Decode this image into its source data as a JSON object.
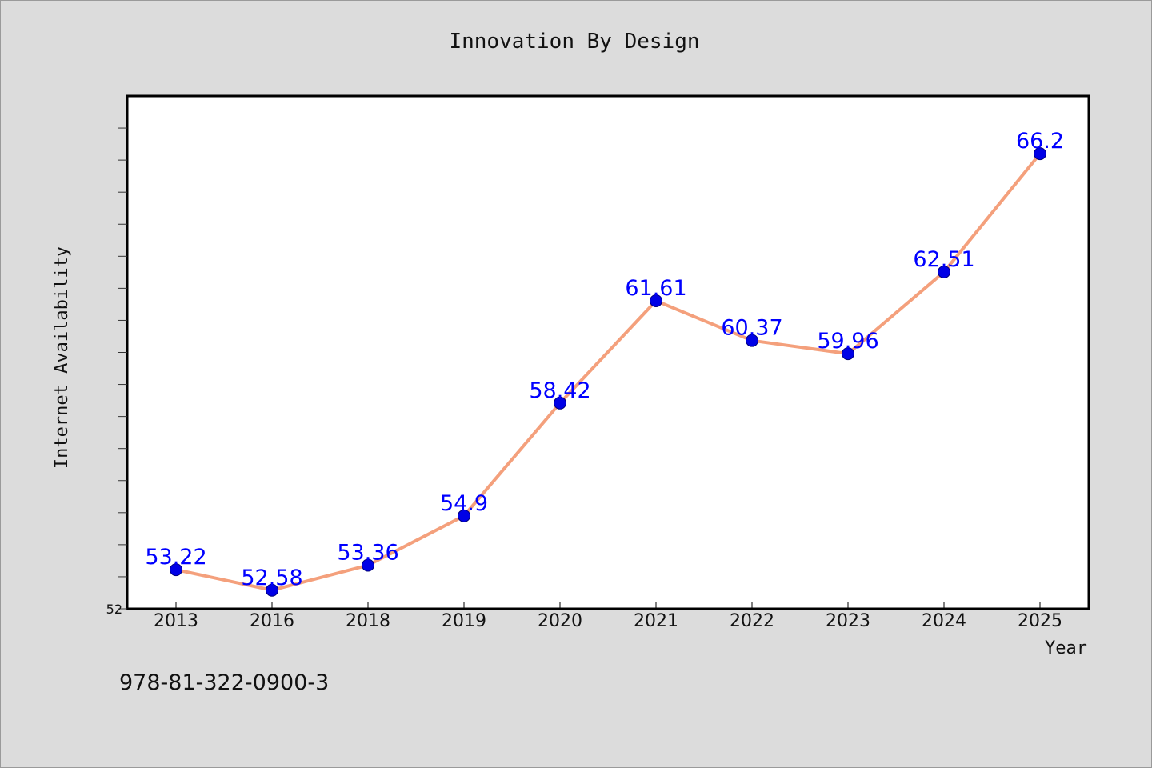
{
  "chart_data": {
    "type": "line",
    "title": "Innovation By Design",
    "xlabel": "Year",
    "ylabel": "Internet Availability",
    "categories": [
      "2013",
      "2016",
      "2018",
      "2019",
      "2020",
      "2021",
      "2022",
      "2023",
      "2024",
      "2025"
    ],
    "series": [
      {
        "values": [
          53.22,
          52.58,
          53.36,
          54.9,
          58.42,
          61.61,
          60.37,
          59.96,
          62.51,
          66.2
        ],
        "labels": [
          "53.22",
          "52.58",
          "53.36",
          "54.9",
          "58.42",
          "61.61",
          "60.37",
          "59.96",
          "62.51",
          "66.2"
        ]
      }
    ],
    "ylim": [
      52,
      68
    ],
    "y_tick_labels": [
      "52"
    ],
    "grid": false,
    "line_color": "#f4a07c",
    "marker_color": "#0000e6",
    "label_color": "#0000ff",
    "background_color": "#dcdcdc",
    "plot_background_color": "#ffffff"
  },
  "footer_text": "978-81-322-0900-3"
}
